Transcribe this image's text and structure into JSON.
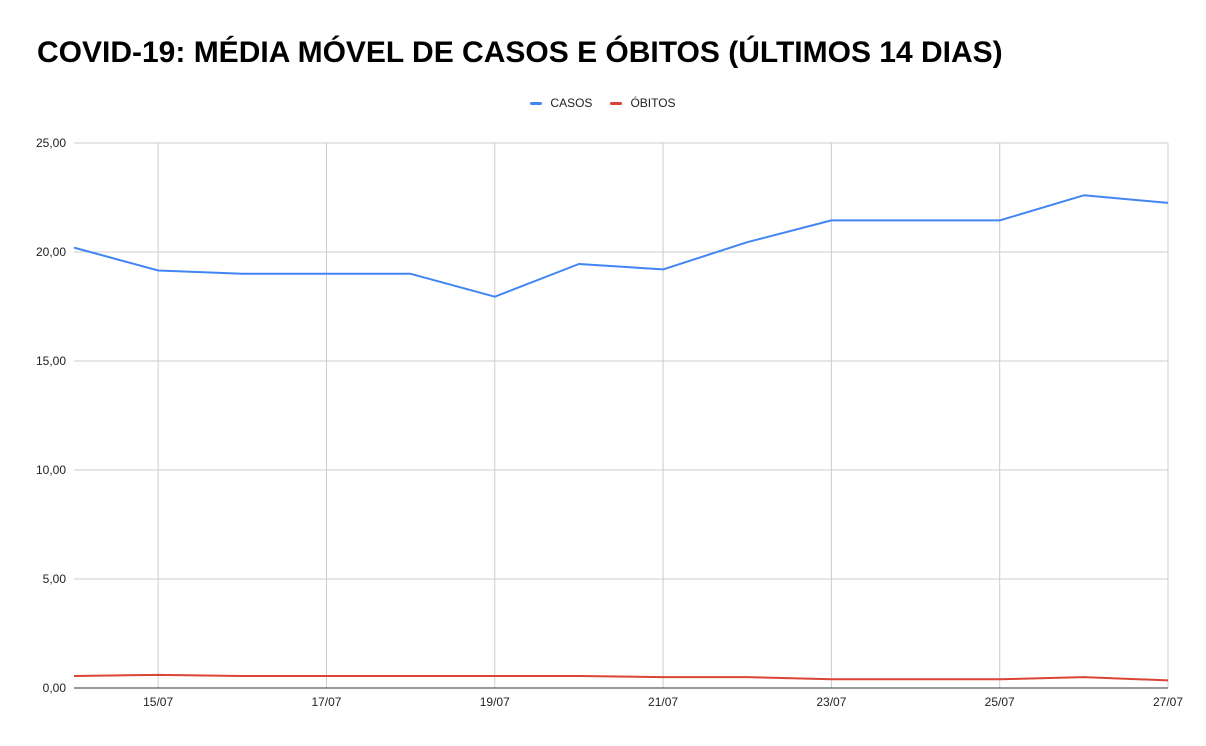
{
  "chart_data": {
    "type": "line",
    "title": "COVID-19: MÉDIA MÓVEL DE CASOS E ÓBITOS (ÚLTIMOS 14 DIAS)",
    "xlabel": "",
    "ylabel": "",
    "x": [
      "14/07",
      "15/07",
      "16/07",
      "17/07",
      "18/07",
      "19/07",
      "20/07",
      "21/07",
      "22/07",
      "23/07",
      "24/07",
      "25/07",
      "26/07",
      "27/07"
    ],
    "x_tick_labels": [
      "15/07",
      "17/07",
      "19/07",
      "21/07",
      "23/07",
      "25/07",
      "27/07"
    ],
    "y_tick_labels": [
      "0,00",
      "5,00",
      "10,00",
      "15,00",
      "20,00",
      "25,00"
    ],
    "y_ticks": [
      0,
      5,
      10,
      15,
      20,
      25
    ],
    "ylim": [
      0,
      25
    ],
    "grid": true,
    "legend_position": "top-center",
    "series": [
      {
        "name": "CASOS",
        "color": "#4285f4",
        "values": [
          20.2,
          19.15,
          19.0,
          19.0,
          19.0,
          17.95,
          19.45,
          19.2,
          20.45,
          21.45,
          21.45,
          21.45,
          22.6,
          22.25
        ]
      },
      {
        "name": "ÓBITOS",
        "color": "#db4437",
        "values": [
          0.55,
          0.6,
          0.55,
          0.55,
          0.55,
          0.55,
          0.55,
          0.5,
          0.5,
          0.4,
          0.4,
          0.4,
          0.5,
          0.35
        ]
      }
    ]
  }
}
